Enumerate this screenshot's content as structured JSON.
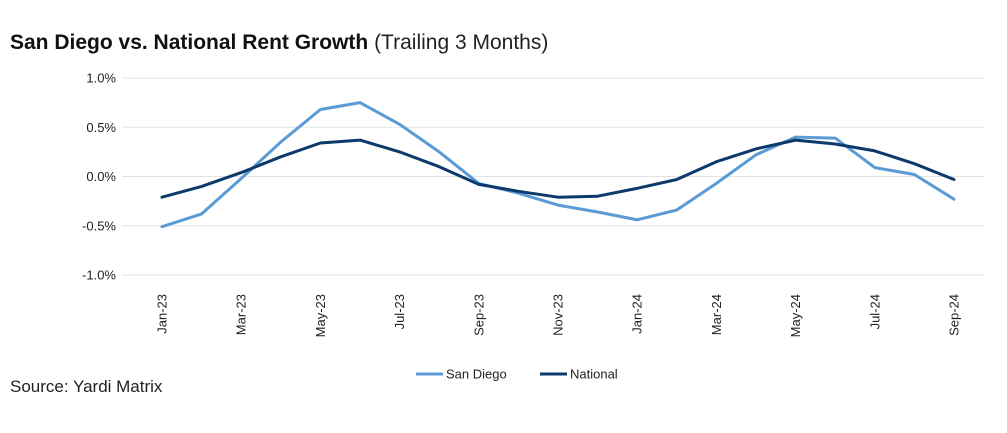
{
  "header": {
    "title": "San Diego vs. National Rent Growth",
    "subtitle": "(Trailing 3 Months)"
  },
  "footer": {
    "source": "Source: Yardi Matrix"
  },
  "colors": {
    "san_diego": "#5b9bd5",
    "national": "#0d3a6b",
    "grid": "#e3e3e3"
  },
  "chart_data": {
    "type": "line",
    "x": [
      "Jan-23",
      "Feb-23",
      "Mar-23",
      "Apr-23",
      "May-23",
      "Jun-23",
      "Jul-23",
      "Aug-23",
      "Sep-23",
      "Oct-23",
      "Nov-23",
      "Dec-23",
      "Jan-24",
      "Feb-24",
      "Mar-24",
      "Apr-24",
      "May-24",
      "Jun-24",
      "Jul-24",
      "Aug-24",
      "Sep-24"
    ],
    "x_tick_labels": [
      "Jan-23",
      "Mar-23",
      "May-23",
      "Jul-23",
      "Sep-23",
      "Nov-23",
      "Jan-24",
      "Mar-24",
      "May-24",
      "Jul-24",
      "Sep-24"
    ],
    "y_tick_labels": [
      "1.0%",
      "0.5%",
      "0.0%",
      "-0.5%",
      "-1.0%"
    ],
    "ylim": [
      -1.0,
      1.0
    ],
    "y_ticks": [
      1.0,
      0.5,
      0.0,
      -0.5,
      -1.0
    ],
    "grid": true,
    "legend_position": "bottom-center",
    "series": [
      {
        "name": "San Diego",
        "color": "#5b9bd5",
        "values": [
          -0.51,
          -0.38,
          -0.02,
          0.35,
          0.68,
          0.75,
          0.53,
          0.25,
          -0.07,
          -0.17,
          -0.29,
          -0.36,
          -0.44,
          -0.34,
          -0.07,
          0.22,
          0.4,
          0.39,
          0.09,
          0.02,
          -0.23
        ]
      },
      {
        "name": "National",
        "color": "#0d3a6b",
        "values": [
          -0.21,
          -0.1,
          0.04,
          0.2,
          0.34,
          0.37,
          0.25,
          0.1,
          -0.08,
          -0.15,
          -0.21,
          -0.2,
          -0.12,
          -0.03,
          0.15,
          0.28,
          0.37,
          0.33,
          0.26,
          0.13,
          -0.03
        ]
      }
    ]
  }
}
